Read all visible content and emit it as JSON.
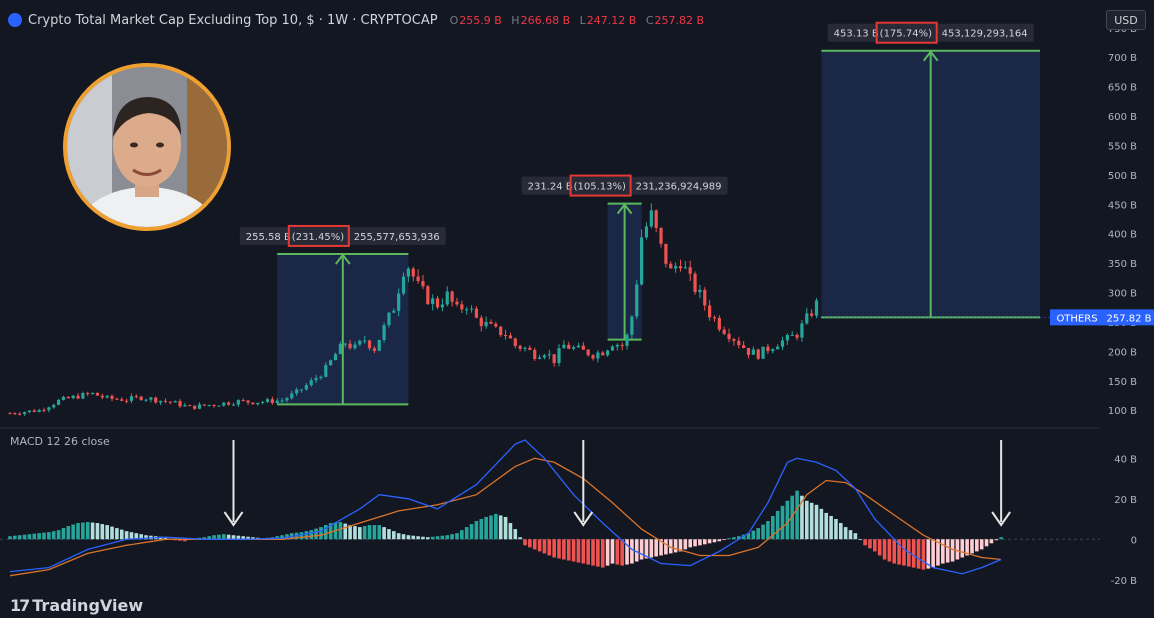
{
  "header": {
    "title": "Crypto Total Market Cap Excluding Top 10, $ · 1W · CRYPTOCAP",
    "ohlc": [
      {
        "k": "O",
        "v": "255.9 B"
      },
      {
        "k": "H",
        "v": "266.68 B"
      },
      {
        "k": "L",
        "v": "247.12 B"
      },
      {
        "k": "C",
        "v": "257.82 B"
      }
    ],
    "currency": "USD"
  },
  "branding": {
    "name": "TradingView",
    "mark": "17"
  },
  "colors": {
    "background": "#131722",
    "up": "#26a69a",
    "down": "#ef5350",
    "measure_fill": "#1c2a4e",
    "measure_line": "#5cb85c",
    "macd_line": "#2962ff",
    "signal_line": "#d9742b",
    "price_label": "#2962ff",
    "arrow": "#e6e6e6",
    "highlight_box": "#e53935"
  },
  "chart_data": [
    {
      "type": "candlestick",
      "title": "Crypto Total Market Cap Excluding Top 10, $ · 1W · CRYPTOCAP",
      "yunit": "B",
      "ylim": [
        80,
        770
      ],
      "yticks": [
        100,
        150,
        200,
        250,
        300,
        350,
        400,
        450,
        500,
        550,
        600,
        650,
        700,
        750
      ],
      "ytick_labels": [
        "100 B",
        "150 B",
        "200 B",
        "250 B",
        "300 B",
        "350 B",
        "400 B",
        "450 B",
        "500 B",
        "550 B",
        "600 B",
        "650 B",
        "700 B",
        "750 B"
      ],
      "grid": false,
      "close_path": [
        [
          0,
          95
        ],
        [
          6,
          100
        ],
        [
          10,
          116
        ],
        [
          14,
          124
        ],
        [
          17,
          128
        ],
        [
          20,
          120
        ],
        [
          24,
          118
        ],
        [
          27,
          122
        ],
        [
          30,
          118
        ],
        [
          34,
          112
        ],
        [
          37,
          105
        ],
        [
          40,
          108
        ],
        [
          44,
          112
        ],
        [
          47,
          115
        ],
        [
          50,
          114
        ],
        [
          53,
          115
        ],
        [
          56,
          117
        ],
        [
          59,
          130
        ],
        [
          62,
          148
        ],
        [
          65,
          170
        ],
        [
          67,
          195
        ],
        [
          69,
          215
        ],
        [
          71,
          205
        ],
        [
          73,
          220
        ],
        [
          75,
          205
        ],
        [
          77,
          240
        ],
        [
          79,
          275
        ],
        [
          81,
          340
        ],
        [
          82,
          345
        ],
        [
          84,
          310
        ],
        [
          86,
          290
        ],
        [
          88,
          280
        ],
        [
          90,
          295
        ],
        [
          92,
          270
        ],
        [
          94,
          280
        ],
        [
          96,
          255
        ],
        [
          98,
          245
        ],
        [
          100,
          235
        ],
        [
          102,
          230
        ],
        [
          104,
          210
        ],
        [
          106,
          205
        ],
        [
          108,
          195
        ],
        [
          110,
          200
        ],
        [
          112,
          185
        ],
        [
          114,
          210
        ],
        [
          116,
          205
        ],
        [
          118,
          200
        ],
        [
          120,
          195
        ],
        [
          122,
          200
        ],
        [
          124,
          215
        ],
        [
          126,
          210
        ],
        [
          127,
          225
        ],
        [
          128,
          260
        ],
        [
          129,
          320
        ],
        [
          130,
          395
        ],
        [
          132,
          430
        ],
        [
          134,
          375
        ],
        [
          136,
          335
        ],
        [
          138,
          355
        ],
        [
          140,
          320
        ],
        [
          142,
          295
        ],
        [
          144,
          265
        ],
        [
          146,
          245
        ],
        [
          148,
          230
        ],
        [
          150,
          215
        ],
        [
          152,
          200
        ],
        [
          154,
          195
        ],
        [
          156,
          205
        ],
        [
          158,
          215
        ],
        [
          160,
          220
        ],
        [
          162,
          230
        ],
        [
          164,
          255
        ],
        [
          166,
          280
        ]
      ],
      "last_price": {
        "label": "OTHERS",
        "value": "257.82 B",
        "y": 257.82
      },
      "measures": [
        {
          "label_text": "255.58 B",
          "pct": "(231.45%)",
          "full": "255,577,653,936",
          "x0": 55,
          "x1": 82,
          "y_low": 110,
          "y_high": 365.6
        },
        {
          "label_text": "231.24 B",
          "pct": "(105.13%)",
          "full": "231,236,924,989",
          "x0": 123,
          "x1": 130,
          "y_low": 220,
          "y_high": 451.2
        },
        {
          "label_text": "453.13 B",
          "pct": "(175.74%)",
          "full": "453,129,293,164",
          "x0": 167,
          "x1": 212,
          "y_low": 257.8,
          "y_high": 711
        }
      ]
    },
    {
      "type": "macd",
      "title": "MACD 12 26 close",
      "ylim": [
        -30,
        50
      ],
      "yticks": [
        -20,
        0,
        20,
        40
      ],
      "ytick_labels": [
        "-20 B",
        "0",
        "20 B",
        "40 B"
      ],
      "histogram": [
        [
          0,
          1.5
        ],
        [
          4,
          2.5
        ],
        [
          8,
          3.5
        ],
        [
          10,
          4.5
        ],
        [
          12,
          6.5
        ],
        [
          14,
          8
        ],
        [
          16,
          8.5
        ],
        [
          18,
          8
        ],
        [
          20,
          7
        ],
        [
          22,
          5.5
        ],
        [
          24,
          4
        ],
        [
          26,
          3
        ],
        [
          28,
          2
        ],
        [
          30,
          1.5
        ],
        [
          32,
          1
        ],
        [
          34,
          -0.5
        ],
        [
          36,
          -1
        ],
        [
          38,
          0.5
        ],
        [
          40,
          1
        ],
        [
          42,
          2
        ],
        [
          44,
          2.5
        ],
        [
          46,
          2
        ],
        [
          48,
          1.5
        ],
        [
          50,
          1
        ],
        [
          52,
          0.5
        ],
        [
          54,
          1
        ],
        [
          56,
          2
        ],
        [
          58,
          3
        ],
        [
          60,
          3.5
        ],
        [
          62,
          4.5
        ],
        [
          64,
          6
        ],
        [
          66,
          8
        ],
        [
          68,
          8.5
        ],
        [
          70,
          7
        ],
        [
          72,
          6
        ],
        [
          74,
          7
        ],
        [
          76,
          7
        ],
        [
          78,
          5
        ],
        [
          80,
          3
        ],
        [
          82,
          2
        ],
        [
          84,
          1.5
        ],
        [
          86,
          1
        ],
        [
          88,
          1.5
        ],
        [
          90,
          2
        ],
        [
          92,
          3
        ],
        [
          94,
          6
        ],
        [
          96,
          9
        ],
        [
          98,
          11
        ],
        [
          100,
          12.5
        ],
        [
          102,
          11
        ],
        [
          104,
          5
        ],
        [
          106,
          -3
        ],
        [
          108,
          -5
        ],
        [
          110,
          -7
        ],
        [
          112,
          -9
        ],
        [
          114,
          -10
        ],
        [
          116,
          -11
        ],
        [
          118,
          -12
        ],
        [
          120,
          -13
        ],
        [
          122,
          -14
        ],
        [
          124,
          -12
        ],
        [
          126,
          -13
        ],
        [
          128,
          -12
        ],
        [
          130,
          -10
        ],
        [
          132,
          -9
        ],
        [
          134,
          -8
        ],
        [
          136,
          -7
        ],
        [
          138,
          -6
        ],
        [
          140,
          -4
        ],
        [
          142,
          -3
        ],
        [
          144,
          -2
        ],
        [
          146,
          -1
        ],
        [
          148,
          0.5
        ],
        [
          150,
          1.5
        ],
        [
          152,
          3
        ],
        [
          154,
          5.5
        ],
        [
          156,
          9
        ],
        [
          158,
          14
        ],
        [
          160,
          19
        ],
        [
          162,
          24
        ],
        [
          164,
          19
        ],
        [
          166,
          17
        ],
        [
          168,
          13
        ],
        [
          170,
          10
        ],
        [
          172,
          6
        ],
        [
          174,
          3
        ],
        [
          176,
          -3
        ],
        [
          178,
          -6
        ],
        [
          180,
          -10
        ],
        [
          182,
          -12
        ],
        [
          184,
          -13
        ],
        [
          186,
          -14
        ],
        [
          188,
          -15
        ],
        [
          190,
          -14
        ],
        [
          192,
          -12
        ],
        [
          194,
          -11
        ],
        [
          196,
          -9
        ],
        [
          198,
          -7
        ],
        [
          200,
          -5
        ],
        [
          202,
          -2
        ],
        [
          204,
          1
        ]
      ],
      "macd_line": [
        [
          0,
          -16
        ],
        [
          8,
          -14
        ],
        [
          16,
          -5
        ],
        [
          24,
          0
        ],
        [
          32,
          1
        ],
        [
          40,
          0
        ],
        [
          48,
          0
        ],
        [
          56,
          0.5
        ],
        [
          64,
          4
        ],
        [
          72,
          15
        ],
        [
          76,
          22
        ],
        [
          82,
          20
        ],
        [
          88,
          15
        ],
        [
          96,
          27
        ],
        [
          104,
          47
        ],
        [
          106,
          49
        ],
        [
          110,
          40
        ],
        [
          116,
          22
        ],
        [
          122,
          8
        ],
        [
          128,
          -5
        ],
        [
          134,
          -12
        ],
        [
          140,
          -13
        ],
        [
          146,
          -6
        ],
        [
          152,
          3
        ],
        [
          156,
          18
        ],
        [
          160,
          38
        ],
        [
          162,
          40
        ],
        [
          166,
          38
        ],
        [
          170,
          34
        ],
        [
          174,
          25
        ],
        [
          178,
          10
        ],
        [
          184,
          -5
        ],
        [
          190,
          -14
        ],
        [
          196,
          -17
        ],
        [
          200,
          -14
        ],
        [
          204,
          -10
        ]
      ],
      "signal_line": [
        [
          0,
          -18
        ],
        [
          8,
          -15
        ],
        [
          16,
          -7
        ],
        [
          24,
          -3
        ],
        [
          32,
          0
        ],
        [
          40,
          0
        ],
        [
          48,
          0
        ],
        [
          56,
          0
        ],
        [
          64,
          2
        ],
        [
          72,
          8
        ],
        [
          80,
          14
        ],
        [
          88,
          17
        ],
        [
          96,
          22
        ],
        [
          104,
          36
        ],
        [
          108,
          40
        ],
        [
          112,
          38
        ],
        [
          118,
          30
        ],
        [
          124,
          18
        ],
        [
          130,
          5
        ],
        [
          136,
          -4
        ],
        [
          142,
          -8
        ],
        [
          148,
          -8
        ],
        [
          154,
          -4
        ],
        [
          160,
          8
        ],
        [
          164,
          22
        ],
        [
          168,
          29
        ],
        [
          172,
          28
        ],
        [
          176,
          22
        ],
        [
          182,
          12
        ],
        [
          188,
          2
        ],
        [
          194,
          -5
        ],
        [
          200,
          -9
        ],
        [
          204,
          -10
        ]
      ],
      "arrows_at_x": [
        46,
        118,
        204
      ]
    }
  ]
}
